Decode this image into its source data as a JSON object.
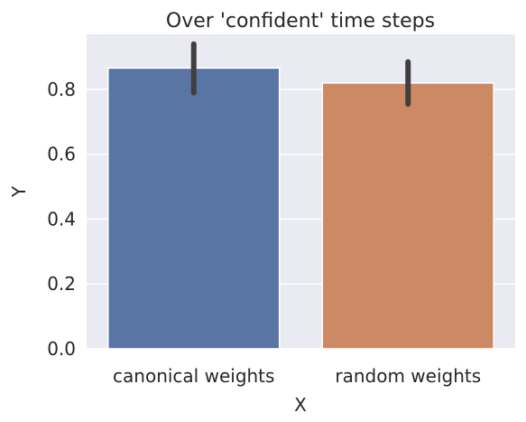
{
  "chart_data": {
    "type": "bar",
    "title": "Over 'confident' time steps",
    "xlabel": "X",
    "ylabel": "Y",
    "categories": [
      "canonical weights",
      "random weights"
    ],
    "values": [
      0.866,
      0.82
    ],
    "error_bars": [
      {
        "low": 0.79,
        "high": 0.94
      },
      {
        "low": 0.755,
        "high": 0.885
      }
    ],
    "ylim": [
      0,
      0.97
    ],
    "yticks": [
      "0.0",
      "0.2",
      "0.4",
      "0.6",
      "0.8"
    ],
    "grid": true,
    "colors": [
      "#5875a4",
      "#cc8963"
    ],
    "background": "#eaeaf2",
    "error_color": "#3f3f3f"
  }
}
